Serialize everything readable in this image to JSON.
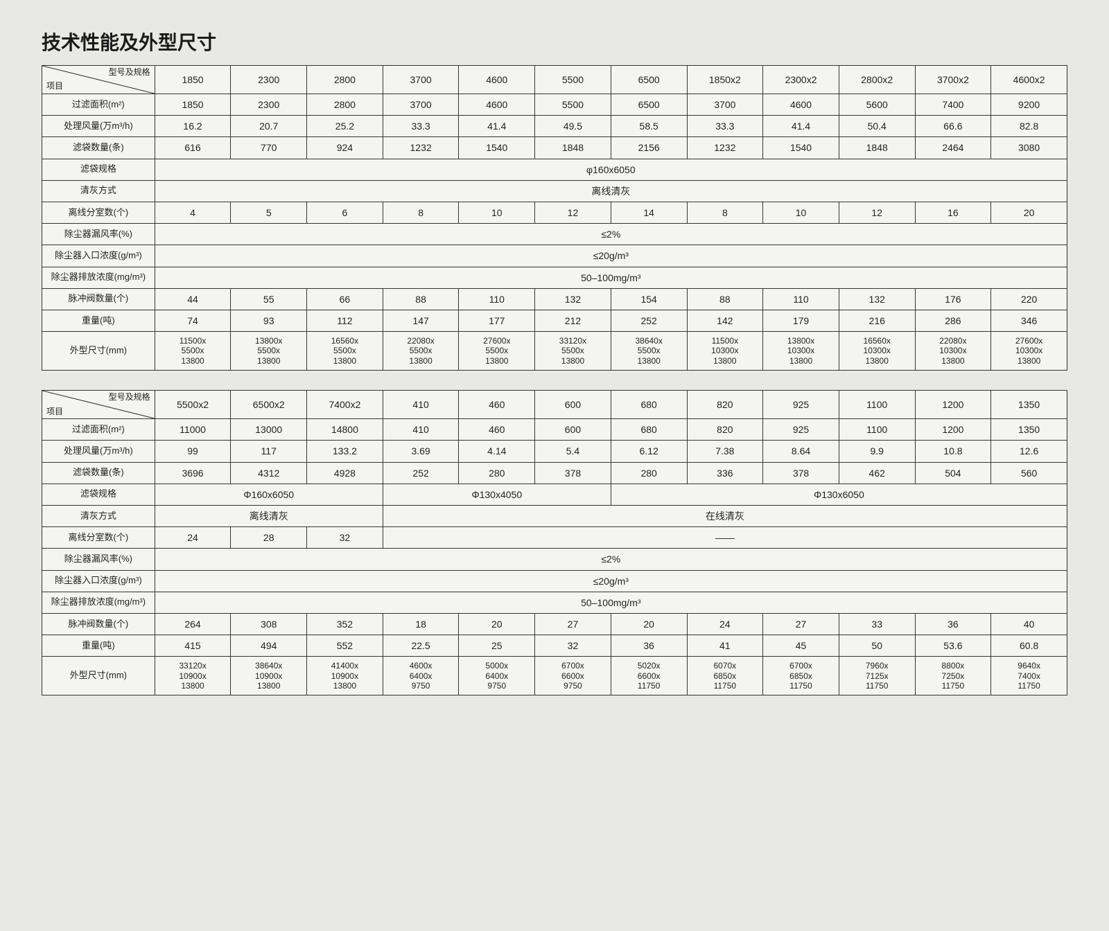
{
  "title": "技术性能及外型尺寸",
  "diag": {
    "top": "型号及规格",
    "bottom": "项目"
  },
  "rowLabels": [
    "过滤面积(m²)",
    "处理风量(万m³/h)",
    "滤袋数量(条)",
    "滤袋规格",
    "清灰方式",
    "离线分室数(个)",
    "除尘器漏风率(%)",
    "除尘器入口浓度(g/m³)",
    "除尘器排放浓度(mg/m³)",
    "脉冲阀数量(个)",
    "重量(吨)",
    "外型尺寸(mm)"
  ],
  "table1": {
    "models": [
      "1850",
      "2300",
      "2800",
      "3700",
      "4600",
      "5500",
      "6500",
      "1850x2",
      "2300x2",
      "2800x2",
      "3700x2",
      "4600x2"
    ],
    "filterArea": [
      "1850",
      "2300",
      "2800",
      "3700",
      "4600",
      "5500",
      "6500",
      "3700",
      "4600",
      "5600",
      "7400",
      "9200"
    ],
    "airVolume": [
      "16.2",
      "20.7",
      "25.2",
      "33.3",
      "41.4",
      "49.5",
      "58.5",
      "33.3",
      "41.4",
      "50.4",
      "66.6",
      "82.8"
    ],
    "bagCount": [
      "616",
      "770",
      "924",
      "1232",
      "1540",
      "1848",
      "2156",
      "1232",
      "1540",
      "1848",
      "2464",
      "3080"
    ],
    "bagSpec": "φ160x6050",
    "cleanMethod": "离线清灰",
    "chambers": [
      "4",
      "5",
      "6",
      "8",
      "10",
      "12",
      "14",
      "8",
      "10",
      "12",
      "16",
      "20"
    ],
    "leakRate": "≤2%",
    "inletConc": "≤20g/m³",
    "outletConc": "50–100mg/m³",
    "pulseValve": [
      "44",
      "55",
      "66",
      "88",
      "110",
      "132",
      "154",
      "88",
      "110",
      "132",
      "176",
      "220"
    ],
    "weight": [
      "74",
      "93",
      "112",
      "147",
      "177",
      "212",
      "252",
      "142",
      "179",
      "216",
      "286",
      "346"
    ],
    "dims": [
      "11500x\n5500x\n13800",
      "13800x\n5500x\n13800",
      "16560x\n5500x\n13800",
      "22080x\n5500x\n13800",
      "27600x\n5500x\n13800",
      "33120x\n5500x\n13800",
      "38640x\n5500x\n13800",
      "11500x\n10300x\n13800",
      "13800x\n10300x\n13800",
      "16560x\n10300x\n13800",
      "22080x\n10300x\n13800",
      "27600x\n10300x\n13800"
    ]
  },
  "table2": {
    "models": [
      "5500x2",
      "6500x2",
      "7400x2",
      "410",
      "460",
      "600",
      "680",
      "820",
      "925",
      "1100",
      "1200",
      "1350"
    ],
    "filterArea": [
      "11000",
      "13000",
      "14800",
      "410",
      "460",
      "600",
      "680",
      "820",
      "925",
      "1100",
      "1200",
      "1350"
    ],
    "airVolume": [
      "99",
      "117",
      "133.2",
      "3.69",
      "4.14",
      "5.4",
      "6.12",
      "7.38",
      "8.64",
      "9.9",
      "10.8",
      "12.6"
    ],
    "bagCount": [
      "3696",
      "4312",
      "4928",
      "252",
      "280",
      "378",
      "280",
      "336",
      "378",
      "462",
      "504",
      "560"
    ],
    "bagSpecSegs": [
      {
        "span": 3,
        "text": "Φ160x6050"
      },
      {
        "span": 3,
        "text": "Φ130x4050"
      },
      {
        "span": 6,
        "text": "Φ130x6050"
      }
    ],
    "cleanSegs": [
      {
        "span": 3,
        "text": "离线清灰"
      },
      {
        "span": 9,
        "text": "在线清灰"
      }
    ],
    "chambersLeft": [
      "24",
      "28",
      "32"
    ],
    "chambersDash": "——",
    "leakRate": "≤2%",
    "inletConc": "≤20g/m³",
    "outletConc": "50–100mg/m³",
    "pulseValve": [
      "264",
      "308",
      "352",
      "18",
      "20",
      "27",
      "20",
      "24",
      "27",
      "33",
      "36",
      "40"
    ],
    "weight": [
      "415",
      "494",
      "552",
      "22.5",
      "25",
      "32",
      "36",
      "41",
      "45",
      "50",
      "53.6",
      "60.8"
    ],
    "dims": [
      "33120x\n10900x\n13800",
      "38640x\n10900x\n13800",
      "41400x\n10900x\n13800",
      "4600x\n6400x\n9750",
      "5000x\n6400x\n9750",
      "6700x\n6600x\n9750",
      "5020x\n6600x\n11750",
      "6070x\n6850x\n11750",
      "6700x\n6850x\n11750",
      "7960x\n7125x\n11750",
      "8800x\n7250x\n11750",
      "9640x\n7400x\n11750"
    ]
  }
}
